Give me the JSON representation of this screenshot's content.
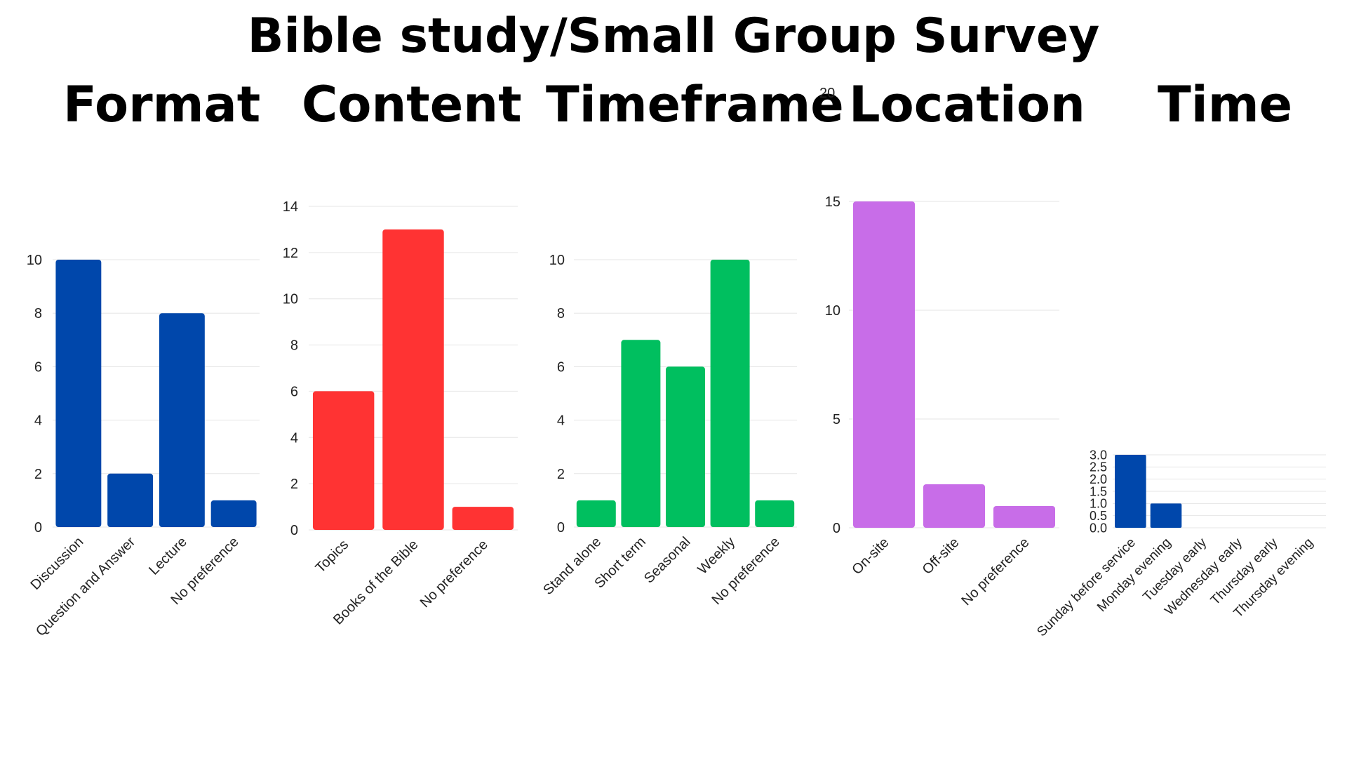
{
  "title": "Bible study/Small Group Survey",
  "stray_tick_label": "20",
  "chart_data": [
    {
      "type": "bar",
      "title": "Format",
      "color": "#0047AB",
      "categories": [
        "Discussion",
        "Question and Answer",
        "Lecture",
        "No preference"
      ],
      "values": [
        10,
        2,
        8,
        1
      ],
      "ylim": [
        0,
        10
      ],
      "yticks": [
        0,
        2,
        4,
        6,
        8,
        10
      ],
      "grid": true
    },
    {
      "type": "bar",
      "title": "Content",
      "color": "#FF3333",
      "categories": [
        "Topics",
        "Books of the Bible",
        "No preference"
      ],
      "values": [
        6,
        13,
        1
      ],
      "ylim": [
        0,
        14
      ],
      "yticks": [
        0,
        2,
        4,
        6,
        8,
        10,
        12,
        14
      ],
      "grid": true
    },
    {
      "type": "bar",
      "title": "Timeframe",
      "color": "#00BF5F",
      "categories": [
        "Stand alone",
        "Short term",
        "Seasonal",
        "Weekly",
        "No preference"
      ],
      "values": [
        1,
        7,
        6,
        10,
        1
      ],
      "ylim": [
        0,
        10
      ],
      "yticks": [
        0,
        2,
        4,
        6,
        8,
        10
      ],
      "grid": true
    },
    {
      "type": "bar",
      "title": "Location",
      "color": "#C86DE8",
      "categories": [
        "On-site",
        "Off-site",
        "No preference"
      ],
      "values": [
        15,
        2,
        1
      ],
      "ylim": [
        0,
        15
      ],
      "yticks": [
        0,
        5,
        10,
        15
      ],
      "grid": true
    },
    {
      "type": "bar",
      "title": "Time",
      "color": "#0047AB",
      "categories": [
        "Sunday before service",
        "Monday evening",
        "Tuesday early",
        "Wednesday early",
        "Thursday early",
        "Thursday evening"
      ],
      "values": [
        3,
        1,
        0,
        0,
        0,
        0
      ],
      "ylim": [
        0,
        3
      ],
      "yticks": [
        0.0,
        0.5,
        1.0,
        1.5,
        2.0,
        2.5,
        3.0
      ],
      "ytick_labels": [
        "0.0",
        "0.5",
        "1.0",
        "1.5",
        "2.0",
        "2.5",
        "3.0"
      ],
      "grid": true
    }
  ]
}
